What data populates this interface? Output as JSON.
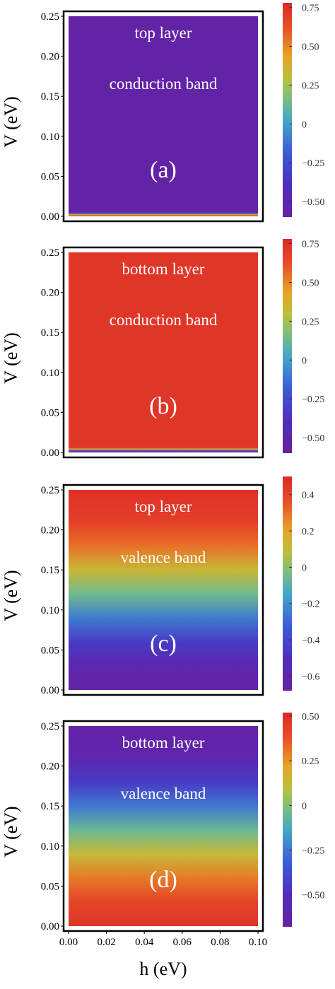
{
  "figure": {
    "x_axis_title": "h (eV)",
    "y_axis_title": "V (eV)"
  },
  "chart_data": [
    {
      "type": "heatmap",
      "panel": "(a)",
      "annotations": [
        "top layer",
        "conduction band"
      ],
      "xlabel": "",
      "ylabel": "V (eV)",
      "xlim": [
        0.0,
        0.1
      ],
      "ylim": [
        0.0,
        0.25
      ],
      "yticks": [
        "0.00",
        "0.05",
        "0.10",
        "0.15",
        "0.20",
        "0.25"
      ],
      "xticks": [],
      "colorbar": {
        "min": -0.6,
        "max": 0.78,
        "ticks": [
          "0.75",
          "0.50",
          "0.25",
          "0",
          "−0.25",
          "−0.50"
        ],
        "tick_values": [
          0.75,
          0.5,
          0.25,
          0,
          -0.25,
          -0.5
        ]
      },
      "profile": {
        "V": [
          0.0,
          0.002,
          0.004,
          0.006,
          0.25
        ],
        "value": [
          0.72,
          0.4,
          -0.3,
          -0.55,
          -0.55
        ]
      }
    },
    {
      "type": "heatmap",
      "panel": "(b)",
      "annotations": [
        "bottom layer",
        "conduction band"
      ],
      "xlabel": "",
      "ylabel": "V (eV)",
      "xlim": [
        0.0,
        0.1
      ],
      "ylim": [
        0.0,
        0.25
      ],
      "yticks": [
        "0.00",
        "0.05",
        "0.10",
        "0.15",
        "0.20",
        "0.25"
      ],
      "xticks": [],
      "colorbar": {
        "min": -0.6,
        "max": 0.78,
        "ticks": [
          "0.75",
          "0.50",
          "0.25",
          "0",
          "−0.25",
          "−0.50"
        ],
        "tick_values": [
          0.75,
          0.5,
          0.25,
          0,
          -0.25,
          -0.5
        ]
      },
      "profile": {
        "V": [
          0.0,
          0.002,
          0.004,
          0.006,
          0.25
        ],
        "value": [
          -0.55,
          -0.3,
          0.4,
          0.72,
          0.72
        ]
      }
    },
    {
      "type": "heatmap",
      "panel": "(c)",
      "annotations": [
        "top layer",
        "valence band"
      ],
      "xlabel": "",
      "ylabel": "V (eV)",
      "xlim": [
        0.0,
        0.1
      ],
      "ylim": [
        0.0,
        0.25
      ],
      "yticks": [
        "0.00",
        "0.05",
        "0.10",
        "0.15",
        "0.20",
        "0.25"
      ],
      "xticks": [],
      "colorbar": {
        "min": -0.68,
        "max": 0.5,
        "ticks": [
          "0.4",
          "0.2",
          "0",
          "−0.2",
          "−0.4",
          "−0.6"
        ],
        "tick_values": [
          0.4,
          0.2,
          0,
          -0.2,
          -0.4,
          -0.6
        ]
      },
      "profile": {
        "V": [
          0.0,
          0.03,
          0.06,
          0.09,
          0.12,
          0.15,
          0.18,
          0.21,
          0.25
        ],
        "value": [
          -0.65,
          -0.6,
          -0.45,
          -0.25,
          -0.05,
          0.12,
          0.3,
          0.42,
          0.47
        ]
      }
    },
    {
      "type": "heatmap",
      "panel": "(d)",
      "annotations": [
        "bottom layer",
        "valence band"
      ],
      "xlabel": "h (eV)",
      "ylabel": "V (eV)",
      "xlim": [
        0.0,
        0.1
      ],
      "ylim": [
        0.0,
        0.25
      ],
      "yticks": [
        "0.00",
        "0.05",
        "0.10",
        "0.15",
        "0.20",
        "0.25"
      ],
      "xticks": [
        "0.00",
        "0.02",
        "0.04",
        "0.06",
        "0.08",
        "0.10"
      ],
      "colorbar": {
        "min": -0.68,
        "max": 0.52,
        "ticks": [
          "0.50",
          "0.25",
          "0",
          "−0.25",
          "−0.50"
        ],
        "tick_values": [
          0.5,
          0.25,
          0,
          -0.25,
          -0.5
        ]
      },
      "profile": {
        "V": [
          0.0,
          0.03,
          0.06,
          0.09,
          0.12,
          0.15,
          0.18,
          0.21,
          0.25
        ],
        "value": [
          0.47,
          0.42,
          0.3,
          0.12,
          -0.05,
          -0.25,
          -0.45,
          -0.6,
          -0.65
        ]
      }
    }
  ]
}
